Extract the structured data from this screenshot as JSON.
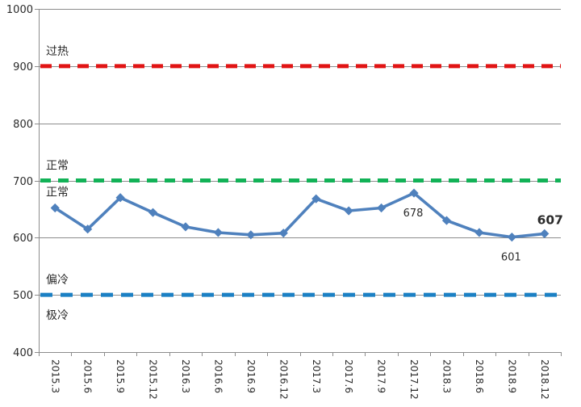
{
  "chart_data": {
    "type": "line",
    "title": "",
    "categories": [
      "2015.3",
      "2015.6",
      "2015.9",
      "2015.12",
      "2016.3",
      "2016.6",
      "2016.9",
      "2016.12",
      "2017.3",
      "2017.6",
      "2017.9",
      "2017.12",
      "2018.3",
      "2018.6",
      "2018.9",
      "2018.12"
    ],
    "series": [
      {
        "name": "index",
        "color": "#4f81bd",
        "marker": "diamond",
        "values": [
          652,
          615,
          670,
          644,
          619,
          609,
          605,
          608,
          668,
          647,
          652,
          678,
          630,
          609,
          601,
          607
        ]
      }
    ],
    "ylim": [
      400,
      1000
    ],
    "ytick_step": 100,
    "grid": true,
    "legend": "none",
    "gridline_color": "#8c8c8c",
    "axis_text_color": "#2b2b2b",
    "reference_lines": [
      {
        "value": 900,
        "color": "#e11414",
        "style": "dashed",
        "labels": [
          {
            "text": "过热",
            "side": "above"
          }
        ]
      },
      {
        "value": 700,
        "color": "#12b257",
        "style": "dashed",
        "labels": [
          {
            "text": "正常",
            "side": "above"
          },
          {
            "text": "正常",
            "side": "below"
          }
        ]
      },
      {
        "value": 500,
        "color": "#1b80c4",
        "style": "dashed",
        "labels": [
          {
            "text": "偏冷",
            "side": "above"
          },
          {
            "text": "极冷",
            "side": "below_far"
          }
        ]
      }
    ],
    "point_labels": [
      {
        "category": "2017.12",
        "index": 11,
        "text": "678",
        "side": "below",
        "bold": false
      },
      {
        "category": "2018.9",
        "index": 14,
        "text": "601",
        "side": "below",
        "bold": false
      },
      {
        "category": "2018.12",
        "index": 15,
        "text": "607",
        "side": "above",
        "bold": true
      }
    ]
  }
}
